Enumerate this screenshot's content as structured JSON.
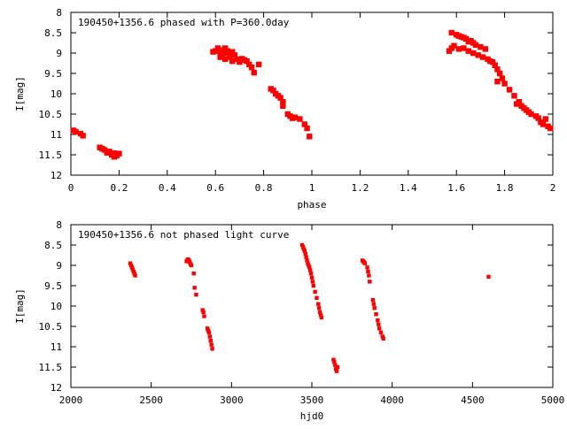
{
  "chart_data": [
    {
      "type": "scatter",
      "title": "190450+1356.6 phased with P=360.0day",
      "xlabel": "phase",
      "ylabel": "I[mag]",
      "xlim": [
        0,
        2
      ],
      "ylim": [
        8,
        12
      ],
      "y_inverted": true,
      "xticks": [
        0,
        0.2,
        0.4,
        0.6,
        0.8,
        1,
        1.2,
        1.4,
        1.6,
        1.8,
        2
      ],
      "xtick_labels": [
        "0",
        "0.2",
        "0.4",
        "0.6",
        "0.8",
        "1",
        "1.2",
        "1.4",
        "1.6",
        "1.8",
        "2"
      ],
      "yticks": [
        8,
        8.5,
        9,
        9.5,
        10,
        10.5,
        11,
        11.5,
        12
      ],
      "ytick_labels": [
        "8",
        "8.5",
        "9",
        "9.5",
        "10",
        "10.5",
        "11",
        "11.5",
        "12"
      ],
      "marker_color": "#ff0000",
      "points": [
        [
          0.01,
          10.9
        ],
        [
          0.02,
          10.93
        ],
        [
          0.04,
          10.98
        ],
        [
          0.05,
          11.03
        ],
        [
          0.12,
          11.32
        ],
        [
          0.13,
          11.35
        ],
        [
          0.14,
          11.38
        ],
        [
          0.15,
          11.45
        ],
        [
          0.16,
          11.42
        ],
        [
          0.17,
          11.5
        ],
        [
          0.18,
          11.46
        ],
        [
          0.18,
          11.55
        ],
        [
          0.19,
          11.52
        ],
        [
          0.2,
          11.47
        ],
        [
          0.59,
          8.97
        ],
        [
          0.6,
          8.95
        ],
        [
          0.61,
          8.88
        ],
        [
          0.62,
          9.0
        ],
        [
          0.62,
          9.1
        ],
        [
          0.63,
          8.93
        ],
        [
          0.63,
          9.05
        ],
        [
          0.64,
          8.88
        ],
        [
          0.64,
          9.15
        ],
        [
          0.65,
          9.0
        ],
        [
          0.65,
          8.95
        ],
        [
          0.66,
          9.1
        ],
        [
          0.66,
          9.02
        ],
        [
          0.67,
          8.97
        ],
        [
          0.67,
          9.2
        ],
        [
          0.68,
          9.05
        ],
        [
          0.69,
          9.15
        ],
        [
          0.7,
          9.22
        ],
        [
          0.71,
          9.14
        ],
        [
          0.72,
          9.17
        ],
        [
          0.73,
          9.2
        ],
        [
          0.74,
          9.28
        ],
        [
          0.75,
          9.35
        ],
        [
          0.76,
          9.48
        ],
        [
          0.78,
          9.28
        ],
        [
          0.83,
          9.88
        ],
        [
          0.84,
          9.92
        ],
        [
          0.85,
          10.0
        ],
        [
          0.86,
          10.05
        ],
        [
          0.87,
          10.1
        ],
        [
          0.88,
          10.2
        ],
        [
          0.88,
          10.3
        ],
        [
          0.9,
          10.5
        ],
        [
          0.91,
          10.55
        ],
        [
          0.92,
          10.6
        ],
        [
          0.93,
          10.58
        ],
        [
          0.95,
          10.62
        ],
        [
          0.97,
          10.75
        ],
        [
          0.98,
          10.85
        ],
        [
          0.99,
          11.05
        ],
        [
          1.57,
          8.95
        ],
        [
          1.58,
          8.88
        ],
        [
          1.58,
          8.5
        ],
        [
          1.59,
          8.82
        ],
        [
          1.6,
          8.55
        ],
        [
          1.61,
          8.58
        ],
        [
          1.61,
          8.9
        ],
        [
          1.62,
          8.6
        ],
        [
          1.63,
          8.88
        ],
        [
          1.63,
          8.62
        ],
        [
          1.64,
          8.65
        ],
        [
          1.65,
          8.95
        ],
        [
          1.65,
          8.72
        ],
        [
          1.66,
          8.7
        ],
        [
          1.67,
          9.0
        ],
        [
          1.67,
          8.75
        ],
        [
          1.68,
          8.8
        ],
        [
          1.69,
          9.05
        ],
        [
          1.7,
          8.85
        ],
        [
          1.71,
          9.1
        ],
        [
          1.72,
          8.9
        ],
        [
          1.73,
          9.15
        ],
        [
          1.74,
          9.2
        ],
        [
          1.75,
          9.22
        ],
        [
          1.76,
          9.3
        ],
        [
          1.77,
          9.4
        ],
        [
          1.77,
          9.7
        ],
        [
          1.78,
          9.5
        ],
        [
          1.79,
          9.62
        ],
        [
          1.8,
          9.75
        ],
        [
          1.82,
          9.9
        ],
        [
          1.84,
          10.05
        ],
        [
          1.85,
          10.25
        ],
        [
          1.86,
          10.2
        ],
        [
          1.87,
          10.3
        ],
        [
          1.88,
          10.35
        ],
        [
          1.89,
          10.4
        ],
        [
          1.9,
          10.45
        ],
        [
          1.91,
          10.5
        ],
        [
          1.93,
          10.55
        ],
        [
          1.94,
          10.6
        ],
        [
          1.95,
          10.7
        ],
        [
          1.96,
          10.75
        ],
        [
          1.97,
          10.62
        ],
        [
          1.98,
          10.8
        ],
        [
          1.99,
          10.85
        ]
      ]
    },
    {
      "type": "scatter",
      "title": "190450+1356.6 not phased light curve",
      "xlabel": "hjd0",
      "ylabel": "I[mag]",
      "xlim": [
        2000,
        5000
      ],
      "ylim": [
        8,
        12
      ],
      "y_inverted": true,
      "xticks": [
        2000,
        2500,
        3000,
        3500,
        4000,
        4500,
        5000
      ],
      "xtick_labels": [
        "2000",
        "2500",
        "3000",
        "3500",
        "4000",
        "4500",
        "5000"
      ],
      "yticks": [
        8,
        8.5,
        9,
        9.5,
        10,
        10.5,
        11,
        11.5,
        12
      ],
      "ytick_labels": [
        "8",
        "8.5",
        "9",
        "9.5",
        "10",
        "10.5",
        "11",
        "11.5",
        "12"
      ],
      "marker_color": "#ff0000",
      "points": [
        [
          2370,
          8.95
        ],
        [
          2375,
          9.0
        ],
        [
          2380,
          9.05
        ],
        [
          2385,
          9.1
        ],
        [
          2390,
          9.15
        ],
        [
          2395,
          9.2
        ],
        [
          2400,
          9.25
        ],
        [
          2720,
          8.9
        ],
        [
          2725,
          8.87
        ],
        [
          2730,
          8.85
        ],
        [
          2735,
          8.88
        ],
        [
          2740,
          8.92
        ],
        [
          2745,
          8.97
        ],
        [
          2750,
          9.0
        ],
        [
          2765,
          9.2
        ],
        [
          2770,
          9.55
        ],
        [
          2780,
          9.72
        ],
        [
          2820,
          10.1
        ],
        [
          2825,
          10.15
        ],
        [
          2830,
          10.25
        ],
        [
          2850,
          10.55
        ],
        [
          2855,
          10.6
        ],
        [
          2860,
          10.65
        ],
        [
          2865,
          10.75
        ],
        [
          2870,
          10.85
        ],
        [
          2875,
          10.95
        ],
        [
          2880,
          11.05
        ],
        [
          3440,
          8.5
        ],
        [
          3445,
          8.55
        ],
        [
          3450,
          8.6
        ],
        [
          3455,
          8.65
        ],
        [
          3460,
          8.72
        ],
        [
          3465,
          8.8
        ],
        [
          3470,
          8.88
        ],
        [
          3475,
          8.95
        ],
        [
          3480,
          9.0
        ],
        [
          3485,
          9.05
        ],
        [
          3490,
          9.12
        ],
        [
          3495,
          9.2
        ],
        [
          3500,
          9.3
        ],
        [
          3505,
          9.4
        ],
        [
          3510,
          9.5
        ],
        [
          3520,
          9.65
        ],
        [
          3530,
          9.8
        ],
        [
          3540,
          9.95
        ],
        [
          3545,
          10.05
        ],
        [
          3550,
          10.15
        ],
        [
          3555,
          10.22
        ],
        [
          3560,
          10.28
        ],
        [
          3635,
          11.32
        ],
        [
          3640,
          11.38
        ],
        [
          3645,
          11.45
        ],
        [
          3650,
          11.55
        ],
        [
          3655,
          11.6
        ],
        [
          3660,
          11.5
        ],
        [
          3815,
          8.88
        ],
        [
          3820,
          8.9
        ],
        [
          3825,
          8.92
        ],
        [
          3830,
          8.95
        ],
        [
          3845,
          9.05
        ],
        [
          3850,
          9.15
        ],
        [
          3855,
          9.25
        ],
        [
          3860,
          9.4
        ],
        [
          3880,
          9.85
        ],
        [
          3885,
          9.95
        ],
        [
          3890,
          10.05
        ],
        [
          3900,
          10.2
        ],
        [
          3910,
          10.35
        ],
        [
          3915,
          10.45
        ],
        [
          3920,
          10.55
        ],
        [
          3930,
          10.65
        ],
        [
          3940,
          10.75
        ],
        [
          3945,
          10.8
        ],
        [
          4600,
          9.28
        ]
      ]
    }
  ]
}
